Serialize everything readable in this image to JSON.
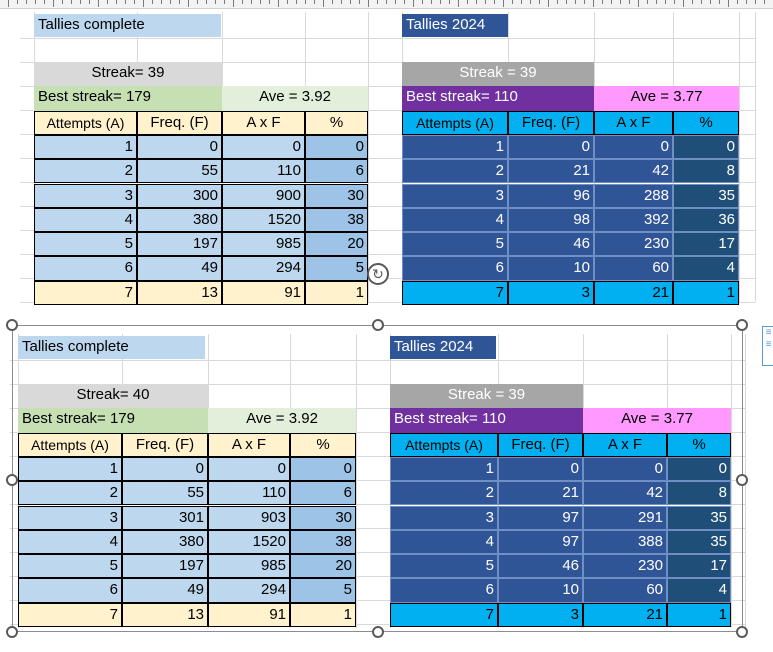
{
  "tables": [
    {
      "id": "top-left",
      "title": "Tallies complete",
      "streak": "Streak= 39",
      "best": "Best streak=  179",
      "ave": "Ave = 3.92",
      "headers": [
        "Attempts (A)",
        "Freq. (F)",
        "A x F",
        "%"
      ],
      "rows": [
        [
          "1",
          "0",
          "0",
          "0"
        ],
        [
          "2",
          "55",
          "110",
          "6"
        ],
        [
          "3",
          "300",
          "900",
          "30"
        ],
        [
          "4",
          "380",
          "1520",
          "38"
        ],
        [
          "5",
          "197",
          "985",
          "20"
        ],
        [
          "6",
          "49",
          "294",
          "5"
        ],
        [
          "7",
          "13",
          "91",
          "1"
        ]
      ]
    },
    {
      "id": "top-right",
      "title": "Tallies 2024",
      "streak": "Streak = 39",
      "best": "Best streak= 110",
      "ave": "Ave = 3.77",
      "headers": [
        "Attempts (A)",
        "Freq. (F)",
        "A x F",
        "%"
      ],
      "rows": [
        [
          "1",
          "0",
          "0",
          "0"
        ],
        [
          "2",
          "21",
          "42",
          "8"
        ],
        [
          "3",
          "96",
          "288",
          "35"
        ],
        [
          "4",
          "98",
          "392",
          "36"
        ],
        [
          "5",
          "46",
          "230",
          "17"
        ],
        [
          "6",
          "10",
          "60",
          "4"
        ],
        [
          "7",
          "3",
          "21",
          "1"
        ]
      ]
    },
    {
      "id": "bottom-left",
      "title": "Tallies complete",
      "streak": "Streak= 40",
      "best": "Best streak=  179",
      "ave": "Ave = 3.92",
      "headers": [
        "Attempts (A)",
        "Freq. (F)",
        "A x F",
        "%"
      ],
      "rows": [
        [
          "1",
          "0",
          "0",
          "0"
        ],
        [
          "2",
          "55",
          "110",
          "6"
        ],
        [
          "3",
          "301",
          "903",
          "30"
        ],
        [
          "4",
          "380",
          "1520",
          "38"
        ],
        [
          "5",
          "197",
          "985",
          "20"
        ],
        [
          "6",
          "49",
          "294",
          "5"
        ],
        [
          "7",
          "13",
          "91",
          "1"
        ]
      ]
    },
    {
      "id": "bottom-right",
      "title": "Tallies 2024",
      "streak": "Streak = 39",
      "best": "Best streak= 110",
      "ave": "Ave = 3.77",
      "headers": [
        "Attempts (A)",
        "Freq. (F)",
        "A x F",
        "%"
      ],
      "rows": [
        [
          "1",
          "0",
          "0",
          "0"
        ],
        [
          "2",
          "21",
          "42",
          "8"
        ],
        [
          "3",
          "97",
          "291",
          "35"
        ],
        [
          "4",
          "97",
          "388",
          "35"
        ],
        [
          "5",
          "46",
          "230",
          "17"
        ],
        [
          "6",
          "10",
          "60",
          "4"
        ],
        [
          "7",
          "3",
          "21",
          "1"
        ]
      ]
    }
  ],
  "colors": {
    "light_blue": "#bdd7ee",
    "mid_blue": "#9dc3e6",
    "light_grey": "#d9d9d9",
    "light_green": "#c6e0b4",
    "peach": "#fff2cc",
    "navy": "#2f5597",
    "dark_navy": "#1f4e79",
    "purple": "#7030a0",
    "pink": "#ff99ff",
    "cyan": "#00b0f0"
  },
  "icons": {
    "rotate": "rotate-handle-icon",
    "layout_options": "layout-options-icon"
  }
}
